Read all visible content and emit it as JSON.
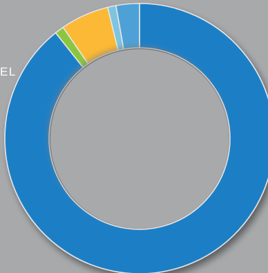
{
  "partial_label": "EL",
  "chart_data": {
    "type": "pie",
    "donut": true,
    "title": "",
    "start_angle_deg": 0,
    "slice_gap_color": "#e6e6e6",
    "slices": [
      {
        "value": 89.3,
        "color": "#1f7fc6"
      },
      {
        "value": 1.1,
        "color": "#8cc63f"
      },
      {
        "value": 5.8,
        "color": "#fbb934"
      },
      {
        "value": 1.0,
        "color": "#7fc4de"
      },
      {
        "value": 2.8,
        "color": "#4ea1d7"
      }
    ]
  }
}
